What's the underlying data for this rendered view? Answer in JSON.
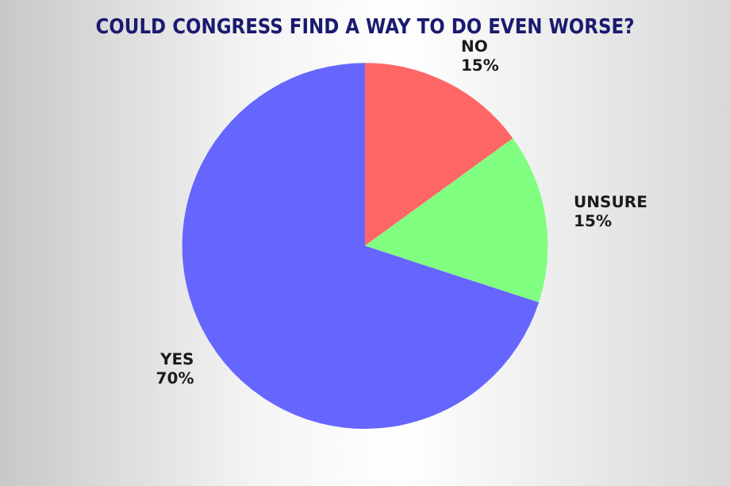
{
  "chart_data": {
    "type": "pie",
    "title": "COULD CONGRESS FIND A WAY TO DO EVEN WORSE?",
    "categories": [
      "NO",
      "UNSURE",
      "YES"
    ],
    "values": [
      15,
      15,
      70
    ],
    "colors": [
      "#ff6666",
      "#80ff80",
      "#6666ff"
    ],
    "value_labels": [
      "15%",
      "15%",
      "70%"
    ],
    "legend": false
  }
}
